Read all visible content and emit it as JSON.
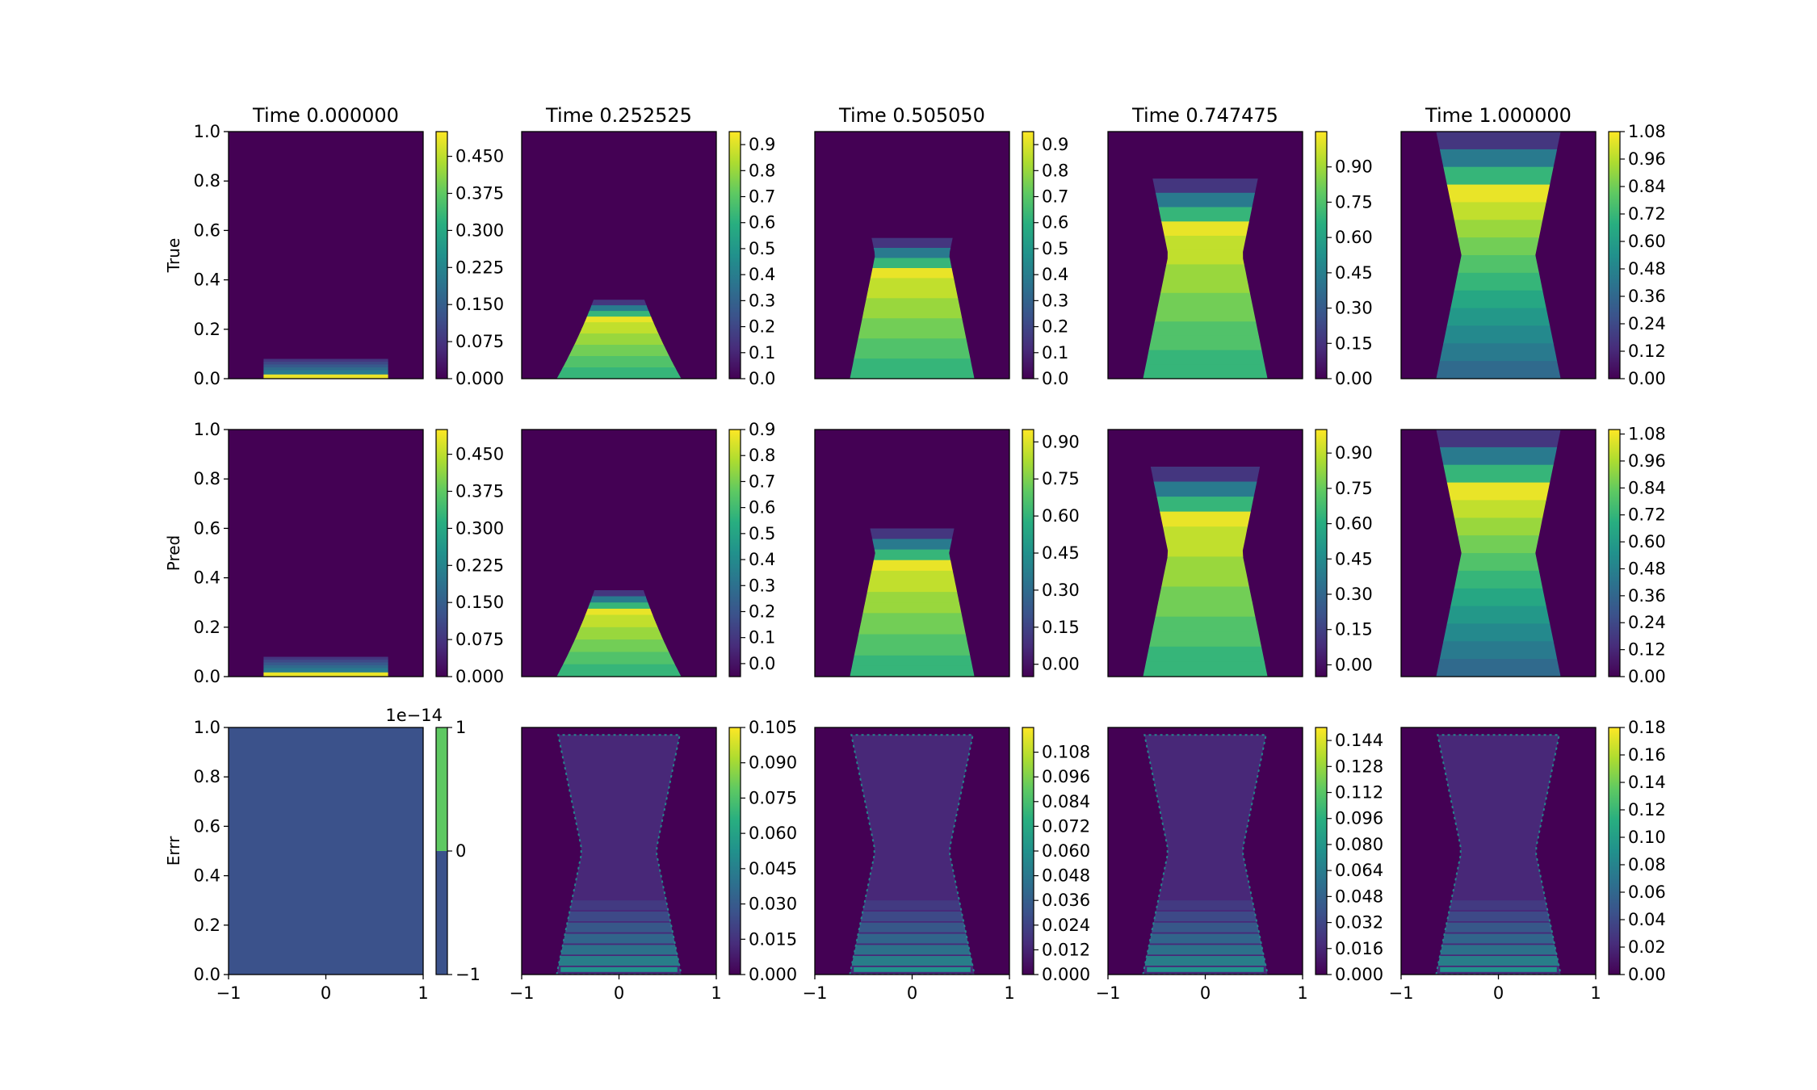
{
  "figure": {
    "titles": [
      "Time 0.000000",
      "Time 0.252525",
      "Time 0.505050",
      "Time 0.747475",
      "Time 1.000000"
    ],
    "row_labels": [
      "True",
      "Pred",
      "Errr"
    ],
    "colormap": [
      "#440154",
      "#472d7b",
      "#3b528b",
      "#2c728e",
      "#21918c",
      "#28ae80",
      "#5ec962",
      "#addc30",
      "#fde725"
    ],
    "background_color": "#440154",
    "x_ticks": [
      "−1",
      "0",
      "1"
    ],
    "y_ticks": [
      "0.0",
      "0.2",
      "0.4",
      "0.6",
      "0.8",
      "1.0"
    ]
  },
  "chart_data": [
    {
      "type": "heatmap",
      "row": "True",
      "title": "Time 0.000000",
      "xlim": [
        -1,
        1
      ],
      "ylim": [
        0,
        1
      ],
      "shape": {
        "kind": "funnel",
        "t": 0.0,
        "top": 0.08
      },
      "vmin": 0.0,
      "vmax": 0.5,
      "colorbar_ticks": [
        "0.000",
        "0.075",
        "0.150",
        "0.225",
        "0.300",
        "0.375",
        "0.450"
      ],
      "colorbar_tick_values": [
        0.0,
        0.075,
        0.15,
        0.225,
        0.3,
        0.375,
        0.45
      ]
    },
    {
      "type": "heatmap",
      "row": "True",
      "title": "Time 0.252525",
      "xlim": [
        -1,
        1
      ],
      "ylim": [
        0,
        1
      ],
      "shape": {
        "kind": "funnel",
        "t": 0.252525,
        "top": 0.32
      },
      "vmin": 0.0,
      "vmax": 0.95,
      "colorbar_ticks": [
        "0.0",
        "0.1",
        "0.2",
        "0.3",
        "0.4",
        "0.5",
        "0.6",
        "0.7",
        "0.8",
        "0.9"
      ],
      "colorbar_tick_values": [
        0.0,
        0.1,
        0.2,
        0.3,
        0.4,
        0.5,
        0.6,
        0.7,
        0.8,
        0.9
      ]
    },
    {
      "type": "heatmap",
      "row": "True",
      "title": "Time 0.505050",
      "xlim": [
        -1,
        1
      ],
      "ylim": [
        0,
        1
      ],
      "shape": {
        "kind": "funnel",
        "t": 0.50505,
        "top": 0.57
      },
      "vmin": 0.0,
      "vmax": 0.95,
      "colorbar_ticks": [
        "0.0",
        "0.1",
        "0.2",
        "0.3",
        "0.4",
        "0.5",
        "0.6",
        "0.7",
        "0.8",
        "0.9"
      ],
      "colorbar_tick_values": [
        0.0,
        0.1,
        0.2,
        0.3,
        0.4,
        0.5,
        0.6,
        0.7,
        0.8,
        0.9
      ]
    },
    {
      "type": "heatmap",
      "row": "True",
      "title": "Time 0.747475",
      "xlim": [
        -1,
        1
      ],
      "ylim": [
        0,
        1
      ],
      "shape": {
        "kind": "funnel",
        "t": 0.747475,
        "top": 0.81
      },
      "vmin": 0.0,
      "vmax": 1.05,
      "colorbar_ticks": [
        "0.00",
        "0.15",
        "0.30",
        "0.45",
        "0.60",
        "0.75",
        "0.90"
      ],
      "colorbar_tick_values": [
        0.0,
        0.15,
        0.3,
        0.45,
        0.6,
        0.75,
        0.9
      ]
    },
    {
      "type": "heatmap",
      "row": "True",
      "title": "Time 1.000000",
      "xlim": [
        -1,
        1
      ],
      "ylim": [
        0,
        1
      ],
      "shape": {
        "kind": "funnel",
        "t": 1.0,
        "top": 1.0
      },
      "vmin": 0.0,
      "vmax": 1.08,
      "colorbar_ticks": [
        "0.00",
        "0.12",
        "0.24",
        "0.36",
        "0.48",
        "0.60",
        "0.72",
        "0.84",
        "0.96",
        "1.08"
      ],
      "colorbar_tick_values": [
        0.0,
        0.12,
        0.24,
        0.36,
        0.48,
        0.6,
        0.72,
        0.84,
        0.96,
        1.08
      ]
    },
    {
      "type": "heatmap",
      "row": "Pred",
      "title": "Time 0.000000",
      "xlim": [
        -1,
        1
      ],
      "ylim": [
        0,
        1
      ],
      "shape": {
        "kind": "funnel",
        "t": 0.0,
        "top": 0.08
      },
      "vmin": 0.0,
      "vmax": 0.5,
      "colorbar_ticks": [
        "0.000",
        "0.075",
        "0.150",
        "0.225",
        "0.300",
        "0.375",
        "0.450"
      ],
      "colorbar_tick_values": [
        0.0,
        0.075,
        0.15,
        0.225,
        0.3,
        0.375,
        0.45
      ]
    },
    {
      "type": "heatmap",
      "row": "Pred",
      "title": "Time 0.252525",
      "xlim": [
        -1,
        1
      ],
      "ylim": [
        0,
        1
      ],
      "shape": {
        "kind": "funnel",
        "t": 0.252525,
        "top": 0.35
      },
      "vmin": -0.05,
      "vmax": 0.9,
      "colorbar_ticks": [
        "0.0",
        "0.1",
        "0.2",
        "0.3",
        "0.4",
        "0.5",
        "0.6",
        "0.7",
        "0.8",
        "0.9"
      ],
      "colorbar_tick_values": [
        0.0,
        0.1,
        0.2,
        0.3,
        0.4,
        0.5,
        0.6,
        0.7,
        0.8,
        0.9
      ]
    },
    {
      "type": "heatmap",
      "row": "Pred",
      "title": "Time 0.505050",
      "xlim": [
        -1,
        1
      ],
      "ylim": [
        0,
        1
      ],
      "shape": {
        "kind": "funnel",
        "t": 0.50505,
        "top": 0.6
      },
      "vmin": -0.05,
      "vmax": 0.95,
      "colorbar_ticks": [
        "0.00",
        "0.15",
        "0.30",
        "0.45",
        "0.60",
        "0.75",
        "0.90"
      ],
      "colorbar_tick_values": [
        0.0,
        0.15,
        0.3,
        0.45,
        0.6,
        0.75,
        0.9
      ]
    },
    {
      "type": "heatmap",
      "row": "Pred",
      "title": "Time 0.747475",
      "xlim": [
        -1,
        1
      ],
      "ylim": [
        0,
        1
      ],
      "shape": {
        "kind": "funnel",
        "t": 0.747475,
        "top": 0.85
      },
      "vmin": -0.05,
      "vmax": 1.0,
      "colorbar_ticks": [
        "0.00",
        "0.15",
        "0.30",
        "0.45",
        "0.60",
        "0.75",
        "0.90"
      ],
      "colorbar_tick_values": [
        0.0,
        0.15,
        0.3,
        0.45,
        0.6,
        0.75,
        0.9
      ]
    },
    {
      "type": "heatmap",
      "row": "Pred",
      "title": "Time 1.000000",
      "xlim": [
        -1,
        1
      ],
      "ylim": [
        0,
        1
      ],
      "shape": {
        "kind": "funnel",
        "t": 1.0,
        "top": 1.0
      },
      "vmin": 0.0,
      "vmax": 1.1,
      "colorbar_ticks": [
        "0.00",
        "0.12",
        "0.24",
        "0.36",
        "0.48",
        "0.60",
        "0.72",
        "0.84",
        "0.96",
        "1.08"
      ],
      "colorbar_tick_values": [
        0.0,
        0.12,
        0.24,
        0.36,
        0.48,
        0.6,
        0.72,
        0.84,
        0.96,
        1.08
      ]
    },
    {
      "type": "heatmap",
      "row": "Errr",
      "title": "Time 0.000000",
      "xlim": [
        -1,
        1
      ],
      "ylim": [
        0,
        1
      ],
      "shape": {
        "kind": "uniform",
        "value": -0.5
      },
      "vmin": -1,
      "vmax": 1,
      "colorbar_offset": "1e−14",
      "colorbar_ticks": [
        "−1",
        "0",
        "1"
      ],
      "colorbar_tick_values": [
        -1,
        0,
        1
      ]
    },
    {
      "type": "heatmap",
      "row": "Errr",
      "title": "Time 0.252525",
      "xlim": [
        -1,
        1
      ],
      "ylim": [
        0,
        1
      ],
      "shape": {
        "kind": "error",
        "t": 0.252525
      },
      "vmin": 0.0,
      "vmax": 0.105,
      "colorbar_ticks": [
        "0.000",
        "0.015",
        "0.030",
        "0.045",
        "0.060",
        "0.075",
        "0.090",
        "0.105"
      ],
      "colorbar_tick_values": [
        0.0,
        0.015,
        0.03,
        0.045,
        0.06,
        0.075,
        0.09,
        0.105
      ]
    },
    {
      "type": "heatmap",
      "row": "Errr",
      "title": "Time 0.505050",
      "xlim": [
        -1,
        1
      ],
      "ylim": [
        0,
        1
      ],
      "shape": {
        "kind": "error",
        "t": 0.50505
      },
      "vmin": 0.0,
      "vmax": 0.12,
      "colorbar_ticks": [
        "0.000",
        "0.012",
        "0.024",
        "0.036",
        "0.048",
        "0.060",
        "0.072",
        "0.084",
        "0.096",
        "0.108"
      ],
      "colorbar_tick_values": [
        0.0,
        0.012,
        0.024,
        0.036,
        0.048,
        0.06,
        0.072,
        0.084,
        0.096,
        0.108
      ]
    },
    {
      "type": "heatmap",
      "row": "Errr",
      "title": "Time 0.747475",
      "xlim": [
        -1,
        1
      ],
      "ylim": [
        0,
        1
      ],
      "shape": {
        "kind": "error",
        "t": 0.747475
      },
      "vmin": 0.0,
      "vmax": 0.152,
      "colorbar_ticks": [
        "0.000",
        "0.016",
        "0.032",
        "0.048",
        "0.064",
        "0.080",
        "0.096",
        "0.112",
        "0.128",
        "0.144"
      ],
      "colorbar_tick_values": [
        0.0,
        0.016,
        0.032,
        0.048,
        0.064,
        0.08,
        0.096,
        0.112,
        0.128,
        0.144
      ]
    },
    {
      "type": "heatmap",
      "row": "Errr",
      "title": "Time 1.000000",
      "xlim": [
        -1,
        1
      ],
      "ylim": [
        0,
        1
      ],
      "shape": {
        "kind": "error",
        "t": 1.0
      },
      "vmin": 0.0,
      "vmax": 0.18,
      "colorbar_ticks": [
        "0.00",
        "0.02",
        "0.04",
        "0.06",
        "0.08",
        "0.10",
        "0.12",
        "0.14",
        "0.16",
        "0.18"
      ],
      "colorbar_tick_values": [
        0.0,
        0.02,
        0.04,
        0.06,
        0.08,
        0.1,
        0.12,
        0.14,
        0.16,
        0.18
      ]
    }
  ]
}
